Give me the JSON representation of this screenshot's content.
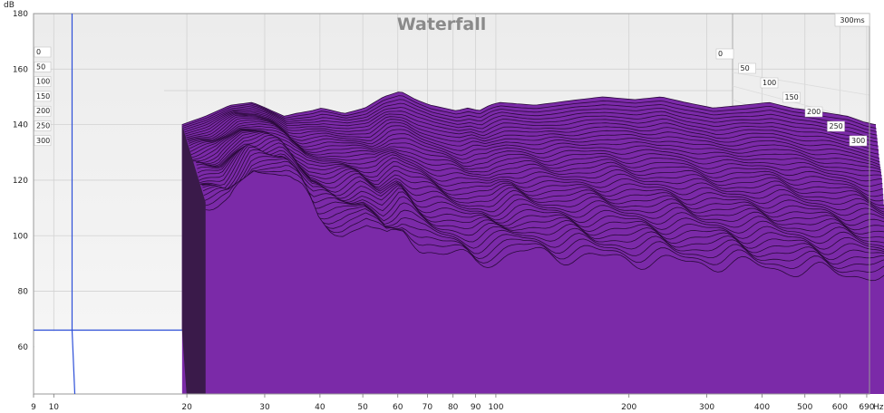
{
  "chart_data": {
    "type": "area",
    "title": "Waterfall",
    "time_span_label": "300ms",
    "y_unit": "dB",
    "x_unit": "Hz",
    "xscale": "log",
    "xlim": [
      9,
      700
    ],
    "ylim": [
      43,
      180
    ],
    "y_ticks": [
      "180",
      "160",
      "140",
      "120",
      "100",
      "80",
      "60"
    ],
    "x_ticks": [
      "9",
      "10",
      "20",
      "30",
      "40",
      "50",
      "60",
      "70",
      "80",
      "90",
      "100",
      "200",
      "300",
      "400",
      "500",
      "600",
      "690"
    ],
    "time_labels_left": [
      "0",
      "50",
      "100",
      "150",
      "200",
      "250",
      "300"
    ],
    "time_labels_right": [
      "0",
      "50",
      "100",
      "150",
      "200",
      "250",
      "300"
    ],
    "time_slices_ms": [
      0,
      50,
      100,
      150,
      200,
      250,
      300
    ],
    "fill_color": "#7b2aa8",
    "cursor_frequency": 11,
    "cursor_level": 66,
    "front_response": {
      "frequency": [
        19.5,
        22,
        25,
        28,
        30,
        33,
        35,
        38,
        40,
        45,
        50,
        55,
        60,
        65,
        70,
        75,
        80,
        85,
        90,
        95,
        100,
        120,
        150,
        170,
        200,
        230,
        260,
        300,
        350,
        400,
        450,
        500,
        550,
        600,
        650,
        690
      ],
      "level_db": [
        140,
        143,
        147,
        148,
        146,
        143,
        144,
        145,
        146,
        144,
        146,
        150,
        152,
        149,
        147,
        146,
        145,
        146,
        145,
        147,
        148,
        147,
        149,
        150,
        149,
        150,
        148,
        146,
        147,
        148,
        146,
        145,
        144,
        143,
        141,
        140
      ]
    },
    "decayed_floor": {
      "frequency": [
        20,
        22,
        24,
        25,
        27,
        30,
        32,
        35,
        38,
        40,
        45,
        50,
        55,
        60,
        70,
        80,
        90,
        100,
        120,
        150,
        200,
        250,
        300,
        350,
        400,
        500,
        600,
        690
      ],
      "level_db": [
        112,
        111,
        120,
        124,
        123,
        124,
        118,
        105,
        102,
        101,
        105,
        98,
        103,
        95,
        93,
        91,
        92,
        94,
        93,
        92,
        91,
        90,
        90,
        89,
        88,
        87,
        86,
        85
      ]
    }
  }
}
